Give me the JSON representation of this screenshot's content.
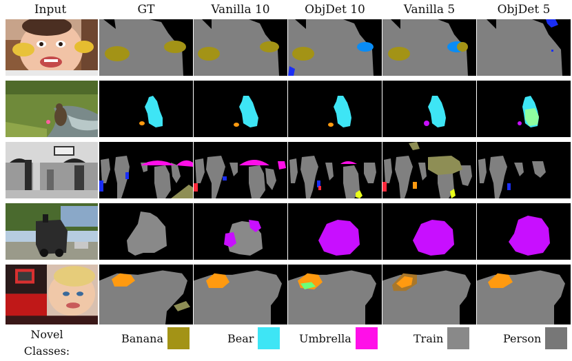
{
  "columns": [
    "Input",
    "GT",
    "Vanilla 10",
    "ObjDet 10",
    "Vanilla 5",
    "ObjDet 5"
  ],
  "rows": [
    {
      "image": "child-with-bananas-photo"
    },
    {
      "image": "bear-by-stream-photo"
    },
    {
      "image": "street-umbrellas-bw-photo"
    },
    {
      "image": "steam-train-photo"
    },
    {
      "image": "person-face-photo"
    }
  ],
  "legend": {
    "title_line1": "Novel",
    "title_line2": "Classes:",
    "items": [
      {
        "label": "Banana",
        "color": "#a39316"
      },
      {
        "label": "Bear",
        "color": "#3ee5f5"
      },
      {
        "label": "Umbrella",
        "color": "#ff0fe8"
      },
      {
        "label": "Train",
        "color": "#898989"
      },
      {
        "label": "Person",
        "color": "#777777"
      }
    ]
  },
  "colors": {
    "background": "#000000",
    "person": "#808080",
    "banana": "#a39316",
    "bear": "#3ee5f5",
    "umbrella": "#ff0fe8",
    "train_pred": "#c80fff",
    "blue": "#1a2ef5",
    "orange": "#ff9a10",
    "light_blue": "#0a8cf5",
    "green": "#6bff7a",
    "yellow": "#e8ff1a",
    "red": "#ff2a3c",
    "olive_light": "#8e8e55"
  }
}
